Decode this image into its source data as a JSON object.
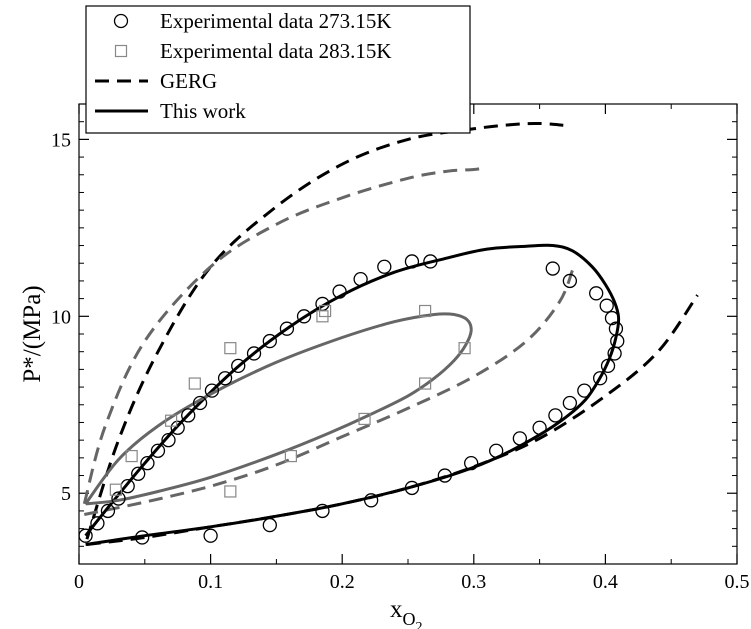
{
  "chart_data": {
    "type": "scatter",
    "title": "",
    "xlabel": "x",
    "xlabel_subscript": "O",
    "xlabel_subscript2": "2",
    "ylabel": "P*/(MPa)",
    "xlim": [
      0,
      0.5
    ],
    "ylim": [
      3.0,
      16.0
    ],
    "grid": false,
    "legend_position": "top-left",
    "x_ticks": [
      {
        "value": 0,
        "label": "0"
      },
      {
        "value": 0.1,
        "label": "0.1"
      },
      {
        "value": 0.2,
        "label": "0.2"
      },
      {
        "value": 0.3,
        "label": "0.3"
      },
      {
        "value": 0.4,
        "label": "0.4"
      },
      {
        "value": 0.5,
        "label": "0.5"
      }
    ],
    "y_ticks": [
      {
        "value": 5,
        "label": "5"
      },
      {
        "value": 10,
        "label": "10"
      },
      {
        "value": 15,
        "label": "15"
      }
    ],
    "legend": [
      {
        "label": "Experimental data 273.15K",
        "marker": "circle"
      },
      {
        "label": "Experimental data 283.15K",
        "marker": "square"
      },
      {
        "label": "GERG",
        "marker": "dashed-line"
      },
      {
        "label": "This work",
        "marker": "solid-line"
      }
    ],
    "colors": {
      "black": "#000000",
      "gray": "#666666",
      "square_gray": "#888888"
    },
    "series": [
      {
        "name": "Experimental data 273.15K",
        "marker": "circle",
        "color": "#000000",
        "x": [
          0.005,
          0.014,
          0.022,
          0.03,
          0.037,
          0.045,
          0.052,
          0.06,
          0.068,
          0.075,
          0.083,
          0.092,
          0.101,
          0.111,
          0.121,
          0.133,
          0.145,
          0.158,
          0.171,
          0.185,
          0.198,
          0.214,
          0.232,
          0.253,
          0.267,
          0.36,
          0.373,
          0.393,
          0.401,
          0.405,
          0.408,
          0.409,
          0.407,
          0.402,
          0.396,
          0.384,
          0.373,
          0.362,
          0.35,
          0.335,
          0.317,
          0.298,
          0.278,
          0.253,
          0.222,
          0.185,
          0.145,
          0.1,
          0.048
        ],
        "y": [
          3.8,
          4.15,
          4.5,
          4.85,
          5.2,
          5.55,
          5.85,
          6.2,
          6.5,
          6.85,
          7.2,
          7.55,
          7.9,
          8.25,
          8.6,
          8.95,
          9.3,
          9.65,
          10.0,
          10.35,
          10.7,
          11.05,
          11.4,
          11.55,
          11.55,
          11.35,
          11.0,
          10.65,
          10.3,
          9.95,
          9.65,
          9.3,
          8.95,
          8.6,
          8.25,
          7.9,
          7.55,
          7.2,
          6.85,
          6.55,
          6.2,
          5.85,
          5.5,
          5.15,
          4.8,
          4.5,
          4.1,
          3.8,
          3.75
        ]
      },
      {
        "name": "Experimental data 283.15K",
        "marker": "square",
        "color": "#888888",
        "x": [
          0.028,
          0.04,
          0.07,
          0.088,
          0.115,
          0.115,
          0.185,
          0.187,
          0.263,
          0.293,
          0.263,
          0.217,
          0.161
        ],
        "y": [
          5.1,
          6.05,
          7.05,
          8.1,
          9.1,
          5.05,
          10.0,
          10.15,
          10.15,
          9.1,
          8.1,
          7.1,
          6.05
        ]
      },
      {
        "name": "GERG 273.15K",
        "line": "dashed",
        "color": "#000000",
        "x": [
          0.006,
          0.03,
          0.06,
          0.1,
          0.15,
          0.2,
          0.25,
          0.3,
          0.33,
          0.35,
          0.368
        ],
        "y": [
          3.7,
          6.5,
          9.0,
          11.4,
          13.1,
          14.3,
          15.0,
          15.3,
          15.42,
          15.45,
          15.4
        ],
        "x2": [
          0.006,
          0.05,
          0.1,
          0.15,
          0.2,
          0.25,
          0.3,
          0.35,
          0.4,
          0.44,
          0.47
        ],
        "y2": [
          3.55,
          3.75,
          4.05,
          4.35,
          4.7,
          5.15,
          5.75,
          6.55,
          7.75,
          9.0,
          10.6
        ]
      },
      {
        "name": "GERG 283.15K",
        "line": "dashed",
        "color": "#666666",
        "x": [
          0.004,
          0.02,
          0.05,
          0.1,
          0.15,
          0.2,
          0.25,
          0.28,
          0.3,
          0.31
        ],
        "y": [
          4.7,
          6.9,
          9.3,
          11.4,
          12.6,
          13.35,
          13.9,
          14.1,
          14.15,
          14.2
        ],
        "x2": [
          0.004,
          0.05,
          0.1,
          0.15,
          0.2,
          0.25,
          0.3,
          0.34,
          0.365,
          0.375
        ],
        "y2": [
          4.4,
          4.75,
          5.2,
          5.8,
          6.6,
          7.4,
          8.3,
          9.3,
          10.4,
          11.3
        ]
      },
      {
        "name": "This work 273.15K",
        "line": "solid",
        "color": "#000000",
        "x": [
          0.005,
          0.02,
          0.05,
          0.08,
          0.12,
          0.16,
          0.2,
          0.24,
          0.28,
          0.31,
          0.34,
          0.36,
          0.375,
          0.39,
          0.4,
          0.407,
          0.41,
          0.408,
          0.403,
          0.395,
          0.385,
          0.37,
          0.35,
          0.32,
          0.29,
          0.25,
          0.2,
          0.15,
          0.1,
          0.05,
          0.005
        ],
        "y": [
          3.8,
          4.5,
          5.85,
          7.1,
          8.55,
          9.7,
          10.6,
          11.25,
          11.65,
          11.9,
          11.98,
          12.0,
          11.85,
          11.4,
          10.9,
          10.4,
          9.95,
          9.4,
          8.8,
          8.2,
          7.65,
          7.15,
          6.65,
          6.05,
          5.6,
          5.15,
          4.7,
          4.35,
          4.05,
          3.8,
          3.55
        ]
      },
      {
        "name": "This work 283.15K",
        "line": "solid",
        "color": "#666666",
        "x": [
          0.005,
          0.03,
          0.06,
          0.1,
          0.15,
          0.2,
          0.24,
          0.27,
          0.285,
          0.295,
          0.298,
          0.294,
          0.285,
          0.27,
          0.25,
          0.22,
          0.19,
          0.15,
          0.1,
          0.06,
          0.03,
          0.005
        ],
        "y": [
          4.7,
          5.95,
          6.9,
          7.8,
          8.7,
          9.4,
          9.85,
          10.05,
          10.05,
          9.9,
          9.6,
          9.2,
          8.75,
          8.25,
          7.75,
          7.2,
          6.7,
          6.1,
          5.45,
          5.05,
          4.8,
          4.7
        ]
      }
    ]
  }
}
